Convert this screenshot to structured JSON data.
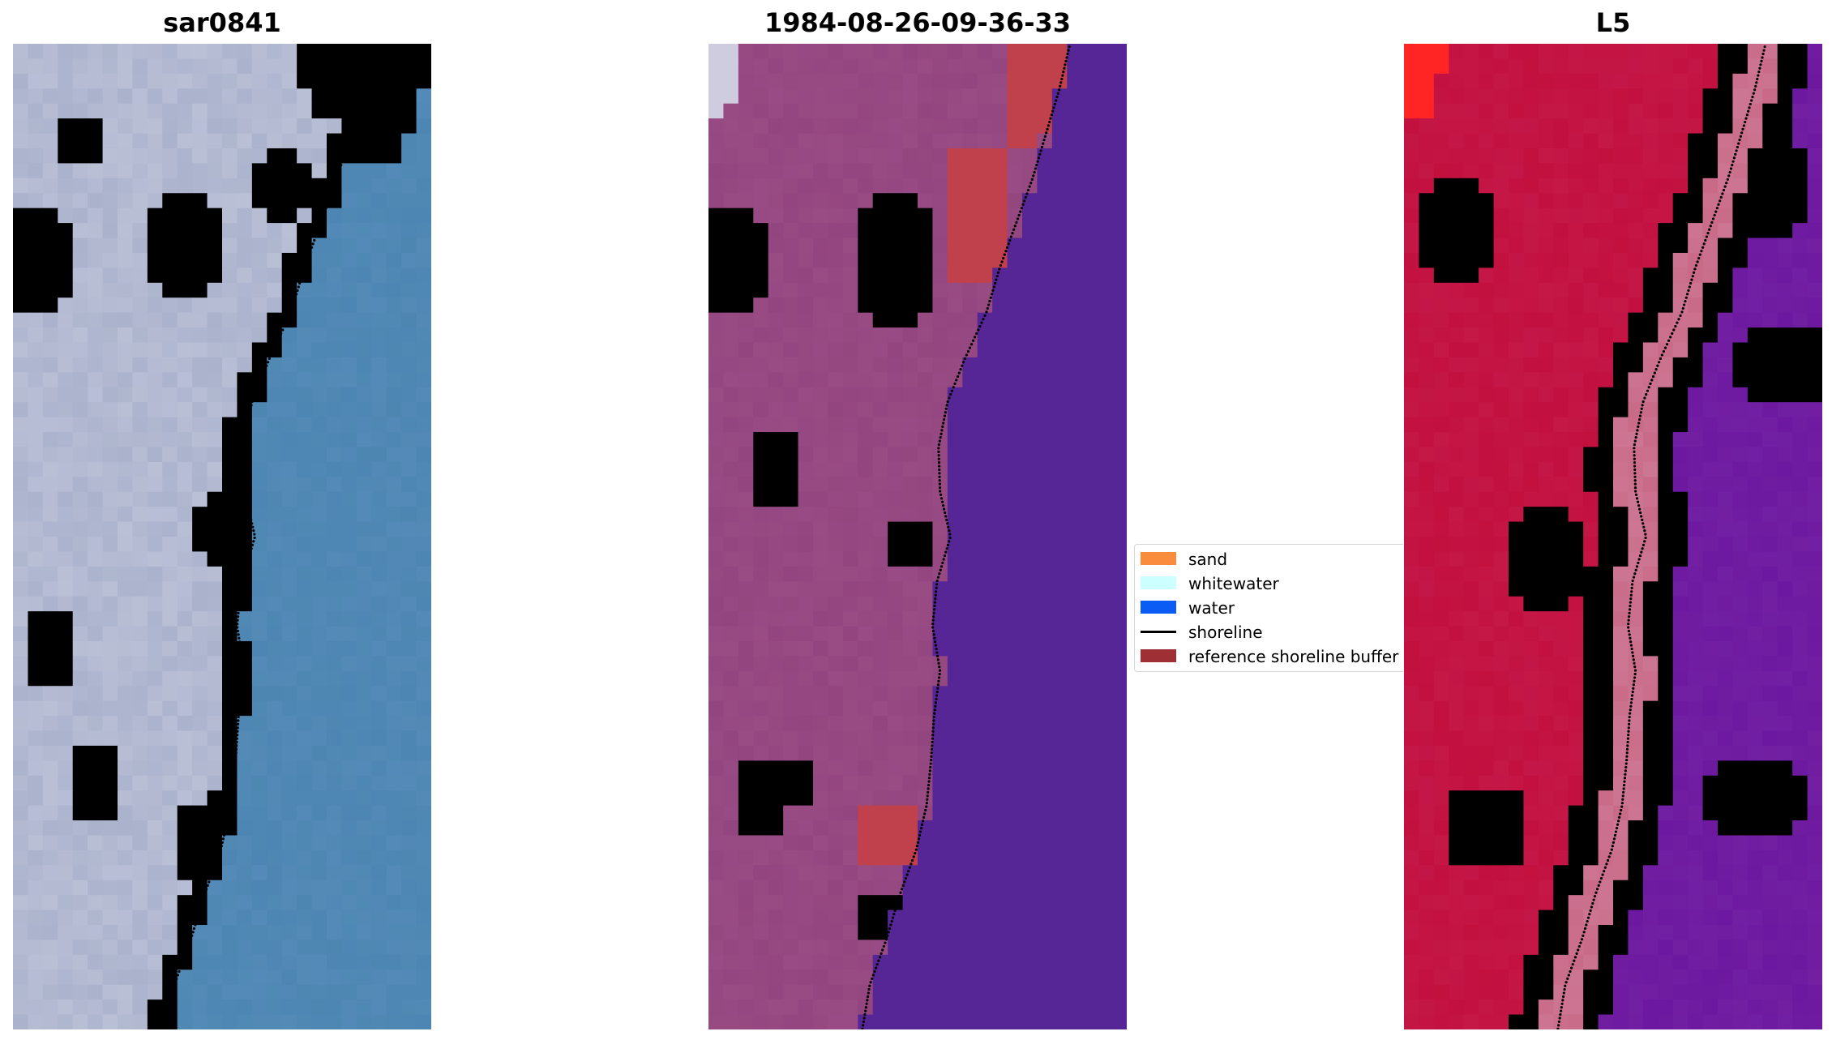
{
  "figure": {
    "panels": [
      {
        "id": "rgb",
        "title": "sar0841"
      },
      {
        "id": "classified",
        "title": "1984-08-26-09-36-33"
      },
      {
        "id": "index",
        "title": "L5"
      }
    ]
  },
  "chart_data": {
    "type": "heatmap",
    "grid": {
      "columns": 28,
      "rows": 66
    },
    "axes": "off",
    "shoreline": {
      "style": "dotted",
      "color": "#000000",
      "rows": [
        0,
        3,
        6,
        9,
        12,
        15,
        18,
        21,
        24,
        27,
        30,
        33,
        36,
        39,
        42,
        45,
        48,
        51,
        54,
        57,
        60,
        63,
        66
      ],
      "columns": [
        24.2,
        23.5,
        22.6,
        21.7,
        20.6,
        19.5,
        18.6,
        17.2,
        16.0,
        15.4,
        15.5,
        16.2,
        15.3,
        15.0,
        15.5,
        15.1,
        14.9,
        14.6,
        13.9,
        12.8,
        11.9,
        10.8,
        10.3
      ]
    },
    "legend": {
      "placement": "center",
      "entries": [
        {
          "label": "sand",
          "color": "#fa8c3d",
          "kind": "patch"
        },
        {
          "label": "whitewater",
          "color": "#ccffff",
          "kind": "patch"
        },
        {
          "label": "water",
          "color": "#0a5cf5",
          "kind": "patch"
        },
        {
          "label": "shoreline",
          "color": "#000000",
          "kind": "line"
        },
        {
          "label": "reference shoreline buffer",
          "color": "#9e2f35",
          "kind": "patch"
        }
      ]
    },
    "panels": [
      {
        "title": "sar0841",
        "kind": "rgb-image",
        "colors": {
          "water": "#4d86b2",
          "land": "#aab2cc",
          "bright": "#eef0f3",
          "dark": "#6e7fa8"
        }
      },
      {
        "title": "1984-08-26-09-36-33",
        "kind": "classified-overlay",
        "colors": {
          "land": "#93457f",
          "land_dark": "#873874",
          "water": "#562696",
          "buffer": "#c0404c",
          "cloud": "#d0cce0"
        }
      },
      {
        "title": "L5",
        "kind": "index-colormap",
        "colors": {
          "land": "#c2103f",
          "land_deep": "#c00838",
          "transition": "#c86a88",
          "water": "#6c18a0",
          "water_deep": "#5e069c",
          "high": "#ff2525"
        }
      }
    ]
  }
}
